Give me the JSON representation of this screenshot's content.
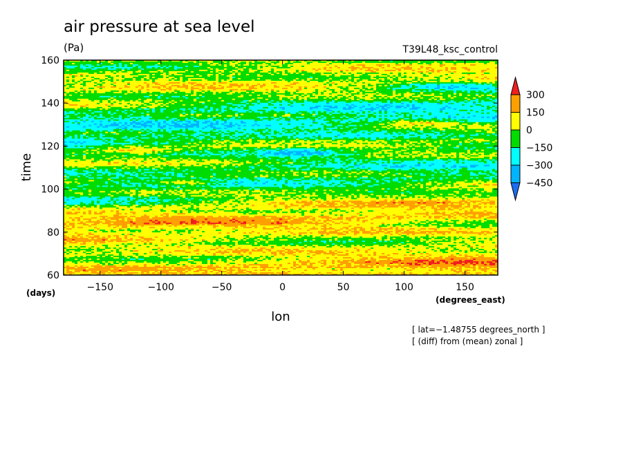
{
  "chart_data": {
    "type": "heatmap",
    "title": "air pressure at sea level",
    "units": "(Pa)",
    "run_label": "T39L48_ksc_control",
    "xlabel": "lon",
    "x_units": "(degrees_east)",
    "ylabel": "time",
    "y_units": "(days)",
    "xlim": [
      -180,
      177
    ],
    "ylim": [
      60,
      160
    ],
    "x_ticks": [
      -150,
      -100,
      -50,
      0,
      50,
      100,
      150
    ],
    "y_ticks": [
      60,
      80,
      100,
      120,
      140,
      160
    ],
    "colorbar": {
      "levels": [
        -450,
        -300,
        -150,
        0,
        150,
        300
      ],
      "tick_labels": [
        "300",
        "150",
        "0",
        "−150",
        "−300",
        "−450"
      ],
      "colors": [
        "#1e6cf0",
        "#00b4ff",
        "#00ffff",
        "#00dc00",
        "#ffff00",
        "#ffa000",
        "#f01e1e"
      ]
    },
    "notes": [
      "[ lat=−1.48755 degrees_north ]",
      "[ (diff) from (mean) zonal ]"
    ],
    "grid": false
  }
}
